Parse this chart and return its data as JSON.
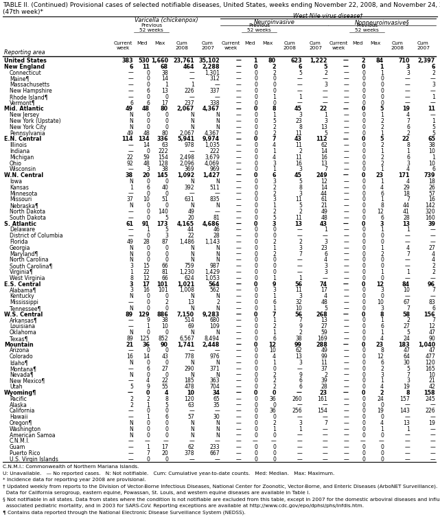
{
  "title_line1": "TABLE II. (Continued) Provisional cases of selected notifiable diseases, United States, weeks ending November 22, 2008, and November 24, 2007",
  "title_line2": "(47th week)*",
  "footnotes": [
    "C.N.M.I.: Commonwealth of Northern Mariana Islands.",
    "U: Unavailable.   — No reported cases.   N: Not notifiable.   Cum: Cumulative year-to-date counts.   Med: Median.   Max: Maximum.",
    "* Incidence data for reporting year 2008 are provisional.",
    "† Updated weekly from reports to the Division of Vector-Borne Infectious Diseases, National Center for Zoonotic, Vector-Borne, and Enteric Diseases (ArboNET Surveillance).",
    "  Data for California serogroup, eastern equine, Powassan, St. Louis, and western equine diseases are available in Table I.",
    "§ Not notifiable in all states. Data from states where the condition is not notifiable are excluded from this table, except in 2007 for the domestic arboviral diseases and influenza-",
    "  associated pediatric mortality, and in 2003 for SARS-CoV. Reporting exceptions are available at http://www.cdc.gov/epo/dphsi/phs/infdis.htm.",
    "¶ Contains data reported through the National Electronic Disease Surveillance System (NEDSS)."
  ],
  "rows": [
    [
      "United States",
      "383",
      "530",
      "1,660",
      "23,761",
      "35,102",
      "—",
      "1",
      "80",
      "623",
      "1,222",
      "—",
      "2",
      "84",
      "710",
      "2,397"
    ],
    [
      "New England",
      "6",
      "11",
      "68",
      "464",
      "2,288",
      "—",
      "0",
      "2",
      "6",
      "5",
      "—",
      "0",
      "1",
      "3",
      "6"
    ],
    [
      "Connecticut",
      "—",
      "0",
      "38",
      "—",
      "1,301",
      "—",
      "0",
      "2",
      "5",
      "2",
      "—",
      "0",
      "1",
      "3",
      "2"
    ],
    [
      "Maine¶",
      "—",
      "0",
      "14",
      "—",
      "312",
      "—",
      "0",
      "0",
      "—",
      "—",
      "—",
      "0",
      "0",
      "—",
      "—"
    ],
    [
      "Massachusetts",
      "—",
      "0",
      "1",
      "1",
      "—",
      "—",
      "0",
      "0",
      "—",
      "3",
      "—",
      "0",
      "0",
      "—",
      "3"
    ],
    [
      "New Hampshire",
      "—",
      "6",
      "13",
      "226",
      "337",
      "—",
      "0",
      "0",
      "—",
      "—",
      "—",
      "0",
      "0",
      "—",
      "—"
    ],
    [
      "Rhode Island¶",
      "—",
      "0",
      "0",
      "—",
      "—",
      "—",
      "0",
      "1",
      "1",
      "—",
      "—",
      "0",
      "0",
      "—",
      "1"
    ],
    [
      "Vermont¶",
      "6",
      "6",
      "17",
      "237",
      "338",
      "—",
      "0",
      "0",
      "—",
      "—",
      "—",
      "0",
      "0",
      "—",
      "—"
    ],
    [
      "Mid. Atlantic",
      "49",
      "48",
      "80",
      "2,067",
      "4,367",
      "—",
      "0",
      "8",
      "45",
      "22",
      "—",
      "0",
      "5",
      "19",
      "11"
    ],
    [
      "New Jersey",
      "N",
      "0",
      "0",
      "N",
      "N",
      "—",
      "0",
      "1",
      "3",
      "1",
      "—",
      "0",
      "1",
      "4",
      "—"
    ],
    [
      "New York (Upstate)",
      "N",
      "0",
      "0",
      "N",
      "N",
      "—",
      "0",
      "5",
      "23",
      "3",
      "—",
      "0",
      "2",
      "7",
      "1"
    ],
    [
      "New York City",
      "N",
      "0",
      "0",
      "N",
      "N",
      "—",
      "0",
      "2",
      "8",
      "13",
      "—",
      "0",
      "2",
      "6",
      "5"
    ],
    [
      "Pennsylvania",
      "49",
      "48",
      "80",
      "2,067",
      "4,367",
      "—",
      "0",
      "2",
      "11",
      "5",
      "—",
      "0",
      "1",
      "2",
      "5"
    ],
    [
      "E.N. Central",
      "114",
      "134",
      "336",
      "5,941",
      "9,974",
      "—",
      "0",
      "7",
      "43",
      "112",
      "—",
      "0",
      "5",
      "22",
      "65"
    ],
    [
      "Illinois",
      "—",
      "14",
      "63",
      "978",
      "1,035",
      "—",
      "0",
      "4",
      "11",
      "62",
      "—",
      "0",
      "2",
      "8",
      "38"
    ],
    [
      "Indiana",
      "—",
      "0",
      "222",
      "—",
      "222",
      "—",
      "0",
      "1",
      "2",
      "14",
      "—",
      "0",
      "1",
      "1",
      "10"
    ],
    [
      "Michigan",
      "22",
      "59",
      "154",
      "2,498",
      "3,679",
      "—",
      "0",
      "4",
      "11",
      "16",
      "—",
      "0",
      "2",
      "6",
      "1"
    ],
    [
      "Ohio",
      "92",
      "48",
      "128",
      "2,096",
      "4,069",
      "—",
      "0",
      "3",
      "16",
      "13",
      "—",
      "0",
      "2",
      "3",
      "10"
    ],
    [
      "Wisconsin",
      "—",
      "3",
      "38",
      "369",
      "969",
      "—",
      "0",
      "1",
      "3",
      "7",
      "—",
      "0",
      "1",
      "4",
      "6"
    ],
    [
      "W.N. Central",
      "38",
      "20",
      "145",
      "1,092",
      "1,427",
      "—",
      "0",
      "6",
      "45",
      "249",
      "—",
      "0",
      "23",
      "171",
      "739"
    ],
    [
      "Iowa",
      "N",
      "0",
      "0",
      "N",
      "N",
      "—",
      "0",
      "3",
      "5",
      "12",
      "—",
      "0",
      "1",
      "4",
      "18"
    ],
    [
      "Kansas",
      "1",
      "6",
      "40",
      "392",
      "511",
      "—",
      "0",
      "2",
      "8",
      "14",
      "—",
      "0",
      "4",
      "29",
      "26"
    ],
    [
      "Minnesota",
      "—",
      "0",
      "0",
      "—",
      "—",
      "—",
      "0",
      "2",
      "3",
      "44",
      "—",
      "0",
      "6",
      "18",
      "57"
    ],
    [
      "Missouri",
      "37",
      "10",
      "51",
      "631",
      "835",
      "—",
      "0",
      "3",
      "11",
      "61",
      "—",
      "0",
      "1",
      "7",
      "16"
    ],
    [
      "Nebraska¶",
      "N",
      "0",
      "0",
      "N",
      "N",
      "—",
      "0",
      "1",
      "5",
      "21",
      "—",
      "0",
      "8",
      "44",
      "142"
    ],
    [
      "North Dakota",
      "—",
      "0",
      "140",
      "49",
      "—",
      "—",
      "0",
      "2",
      "2",
      "49",
      "—",
      "0",
      "12",
      "41",
      "320"
    ],
    [
      "South Dakota",
      "—",
      "0",
      "5",
      "20",
      "81",
      "—",
      "0",
      "5",
      "11",
      "48",
      "—",
      "0",
      "6",
      "28",
      "160"
    ],
    [
      "S. Atlantic",
      "61",
      "91",
      "173",
      "4,165",
      "4,686",
      "—",
      "0",
      "3",
      "13",
      "43",
      "—",
      "0",
      "3",
      "13",
      "39"
    ],
    [
      "Delaware",
      "—",
      "1",
      "5",
      "44",
      "46",
      "—",
      "0",
      "0",
      "—",
      "1",
      "—",
      "0",
      "1",
      "1",
      "—"
    ],
    [
      "District of Columbia",
      "—",
      "0",
      "3",
      "22",
      "28",
      "—",
      "0",
      "0",
      "—",
      "—",
      "—",
      "0",
      "0",
      "—",
      "—"
    ],
    [
      "Florida",
      "49",
      "28",
      "87",
      "1,486",
      "1,143",
      "—",
      "0",
      "2",
      "2",
      "3",
      "—",
      "0",
      "0",
      "—",
      "—"
    ],
    [
      "Georgia",
      "N",
      "0",
      "0",
      "N",
      "N",
      "—",
      "0",
      "1",
      "3",
      "23",
      "—",
      "0",
      "1",
      "4",
      "27"
    ],
    [
      "Maryland¶",
      "N",
      "0",
      "0",
      "N",
      "N",
      "—",
      "0",
      "2",
      "7",
      "6",
      "—",
      "0",
      "2",
      "7",
      "4"
    ],
    [
      "North Carolina",
      "N",
      "0",
      "0",
      "N",
      "N",
      "—",
      "0",
      "0",
      "—",
      "4",
      "—",
      "0",
      "0",
      "—",
      "4"
    ],
    [
      "South Carolina¶",
      "3",
      "15",
      "66",
      "759",
      "987",
      "—",
      "0",
      "0",
      "—",
      "3",
      "—",
      "0",
      "0",
      "—",
      "2"
    ],
    [
      "Virginia¶",
      "1",
      "22",
      "81",
      "1,230",
      "1,429",
      "—",
      "0",
      "0",
      "—",
      "3",
      "—",
      "0",
      "1",
      "1",
      "2"
    ],
    [
      "West Virginia",
      "8",
      "12",
      "66",
      "624",
      "1,053",
      "—",
      "0",
      "1",
      "1",
      "—",
      "—",
      "0",
      "0",
      "—",
      "—"
    ],
    [
      "E.S. Central",
      "3",
      "17",
      "101",
      "1,021",
      "564",
      "—",
      "0",
      "9",
      "56",
      "74",
      "—",
      "0",
      "12",
      "84",
      "96"
    ],
    [
      "Alabama¶",
      "3",
      "16",
      "101",
      "1,008",
      "562",
      "—",
      "0",
      "3",
      "11",
      "17",
      "—",
      "0",
      "3",
      "10",
      "7"
    ],
    [
      "Kentucky",
      "N",
      "0",
      "0",
      "N",
      "N",
      "—",
      "0",
      "1",
      "3",
      "4",
      "—",
      "0",
      "0",
      "—",
      "—"
    ],
    [
      "Mississippi",
      "—",
      "0",
      "2",
      "13",
      "2",
      "—",
      "0",
      "6",
      "32",
      "48",
      "—",
      "0",
      "10",
      "67",
      "83"
    ],
    [
      "Tennessee¶",
      "N",
      "0",
      "0",
      "N",
      "N",
      "—",
      "0",
      "1",
      "10",
      "5",
      "—",
      "0",
      "3",
      "7",
      "6"
    ],
    [
      "W.S. Central",
      "89",
      "129",
      "886",
      "7,150",
      "9,283",
      "—",
      "0",
      "7",
      "56",
      "268",
      "—",
      "0",
      "8",
      "58",
      "156"
    ],
    [
      "Arkansas¶",
      "—",
      "9",
      "38",
      "514",
      "680",
      "—",
      "0",
      "1",
      "7",
      "13",
      "—",
      "0",
      "1",
      "2",
      "7"
    ],
    [
      "Louisiana",
      "—",
      "1",
      "10",
      "69",
      "109",
      "—",
      "0",
      "2",
      "9",
      "27",
      "—",
      "0",
      "6",
      "27",
      "12"
    ],
    [
      "Oklahoma",
      "N",
      "0",
      "0",
      "N",
      "N",
      "—",
      "0",
      "1",
      "2",
      "59",
      "—",
      "0",
      "1",
      "5",
      "47"
    ],
    [
      "Texas¶",
      "89",
      "125",
      "852",
      "6,567",
      "8,494",
      "—",
      "0",
      "6",
      "38",
      "169",
      "—",
      "0",
      "4",
      "24",
      "90"
    ],
    [
      "Mountain",
      "21",
      "36",
      "90",
      "1,741",
      "2,448",
      "—",
      "0",
      "12",
      "99",
      "288",
      "—",
      "0",
      "23",
      "183",
      "1,040"
    ],
    [
      "Arizona",
      "—",
      "0",
      "0",
      "—",
      "—",
      "—",
      "0",
      "10",
      "62",
      "49",
      "—",
      "0",
      "8",
      "47",
      "47"
    ],
    [
      "Colorado",
      "16",
      "14",
      "43",
      "778",
      "976",
      "—",
      "0",
      "4",
      "13",
      "99",
      "—",
      "0",
      "12",
      "64",
      "477"
    ],
    [
      "Idaho¶",
      "N",
      "0",
      "0",
      "N",
      "N",
      "—",
      "0",
      "1",
      "3",
      "11",
      "—",
      "0",
      "6",
      "30",
      "120"
    ],
    [
      "Montana¶",
      "—",
      "6",
      "27",
      "290",
      "371",
      "—",
      "0",
      "0",
      "—",
      "37",
      "—",
      "0",
      "2",
      "5",
      "165"
    ],
    [
      "Nevada¶",
      "N",
      "0",
      "0",
      "N",
      "N",
      "—",
      "0",
      "2",
      "9",
      "2",
      "—",
      "0",
      "3",
      "7",
      "10"
    ],
    [
      "New Mexico¶",
      "—",
      "4",
      "22",
      "185",
      "363",
      "—",
      "0",
      "2",
      "6",
      "39",
      "—",
      "0",
      "1",
      "3",
      "21"
    ],
    [
      "Utah",
      "5",
      "9",
      "55",
      "478",
      "704",
      "—",
      "0",
      "2",
      "6",
      "28",
      "—",
      "0",
      "4",
      "19",
      "42"
    ],
    [
      "Wyoming¶",
      "—",
      "0",
      "4",
      "10",
      "34",
      "—",
      "0",
      "0",
      "—",
      "23",
      "—",
      "0",
      "2",
      "8",
      "158"
    ],
    [
      "Pacific",
      "2",
      "2",
      "8",
      "120",
      "65",
      "—",
      "0",
      "36",
      "260",
      "161",
      "—",
      "0",
      "24",
      "157",
      "245"
    ],
    [
      "Alaska",
      "2",
      "1",
      "5",
      "63",
      "35",
      "—",
      "0",
      "0",
      "—",
      "—",
      "—",
      "0",
      "0",
      "—",
      "—"
    ],
    [
      "California",
      "—",
      "0",
      "0",
      "—",
      "—",
      "—",
      "0",
      "36",
      "256",
      "154",
      "—",
      "0",
      "19",
      "143",
      "226"
    ],
    [
      "Hawaii",
      "—",
      "1",
      "6",
      "57",
      "30",
      "—",
      "0",
      "0",
      "—",
      "—",
      "—",
      "0",
      "0",
      "—",
      "—"
    ],
    [
      "Oregon¶",
      "N",
      "0",
      "0",
      "N",
      "N",
      "—",
      "0",
      "2",
      "3",
      "7",
      "—",
      "0",
      "4",
      "13",
      "19"
    ],
    [
      "Washington",
      "N",
      "0",
      "0",
      "N",
      "N",
      "—",
      "0",
      "1",
      "1",
      "—",
      "—",
      "0",
      "1",
      "1",
      "—"
    ],
    [
      "American Samoa",
      "N",
      "0",
      "0",
      "N",
      "N",
      "—",
      "0",
      "0",
      "—",
      "—",
      "—",
      "0",
      "0",
      "—",
      "—"
    ],
    [
      "C.N.M.I.",
      "—",
      "—",
      "—",
      "—",
      "—",
      "—",
      "—",
      "—",
      "—",
      "—",
      "—",
      "—",
      "—",
      "—",
      "—"
    ],
    [
      "Guam",
      "—",
      "1",
      "17",
      "62",
      "233",
      "—",
      "0",
      "0",
      "—",
      "—",
      "—",
      "0",
      "0",
      "—",
      "—"
    ],
    [
      "Puerto Rico",
      "—",
      "7",
      "20",
      "378",
      "667",
      "—",
      "0",
      "0",
      "—",
      "—",
      "—",
      "0",
      "0",
      "—",
      "—"
    ],
    [
      "U.S. Virgin Islands",
      "—",
      "0",
      "0",
      "—",
      "—",
      "—",
      "0",
      "0",
      "—",
      "—",
      "—",
      "0",
      "0",
      "—",
      "—"
    ]
  ],
  "bold_rows": [
    0,
    1,
    8,
    13,
    19,
    27,
    37,
    42,
    47,
    55
  ],
  "section_bold_rows": [
    0
  ]
}
